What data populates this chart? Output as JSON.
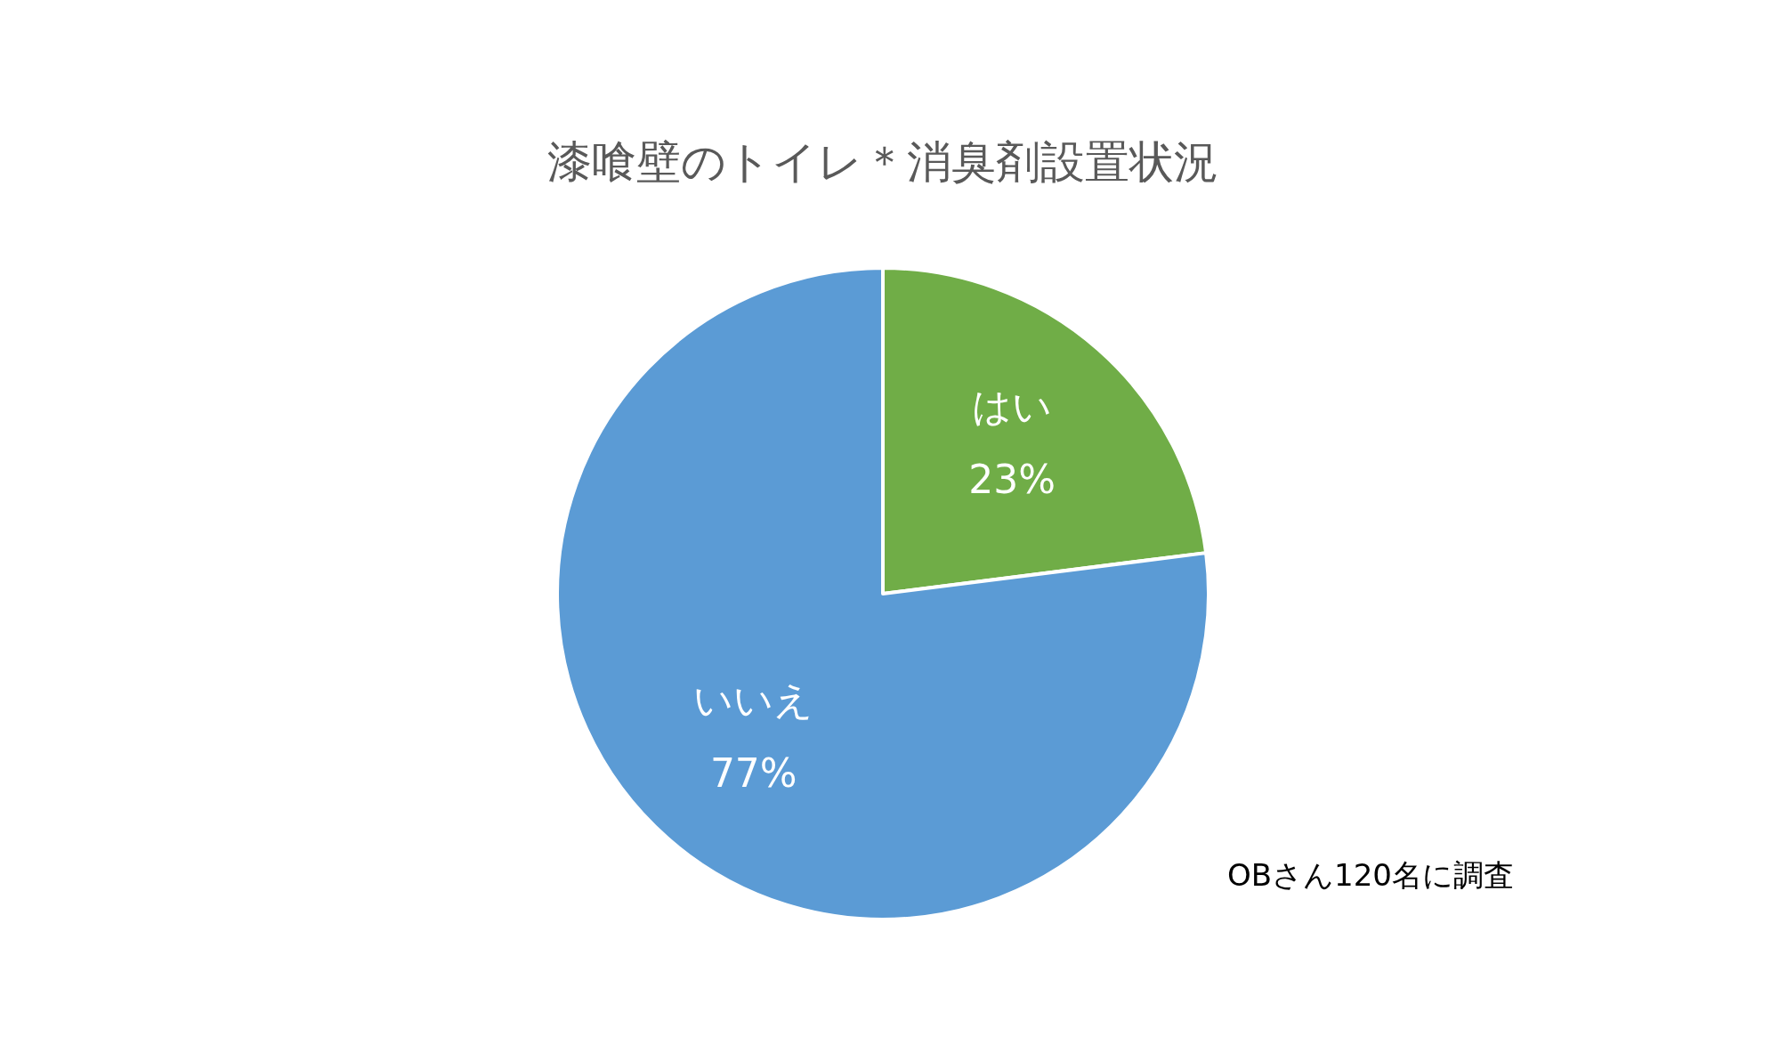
{
  "chart_data": {
    "type": "pie",
    "title": "漆喰壁のトイレ＊消臭剤設置状況",
    "categories": [
      "はい",
      "いいえ"
    ],
    "values": [
      23,
      77
    ],
    "colors": [
      "#70ad47",
      "#5b9bd5"
    ],
    "value_labels": [
      "23%",
      "77%"
    ],
    "annotations": [
      "OBさん120名に調査"
    ]
  }
}
